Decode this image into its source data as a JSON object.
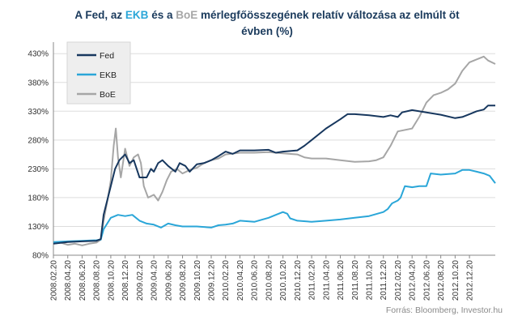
{
  "title": {
    "part1": "A Fed,  az ",
    "ekb": "EKB",
    "part2": " és a ",
    "boe": "BoE",
    "part3": " mérlegfőösszegének  relatív változása az elmúlt öt",
    "line2": "évben (%)"
  },
  "source": "Forrás: Bloomberg, Investor.hu",
  "colors": {
    "fed": "#17375e",
    "ekb": "#2aa6d8",
    "boe": "#a6a6a6",
    "title": "#1a3a5c",
    "grid": "#dddddd"
  },
  "chart_data": {
    "type": "line",
    "title": "A Fed, az EKB és a BoE mérlegfőösszegének relatív változása az elmúlt öt évben (%)",
    "y_ticks": [
      "80%",
      "130%",
      "180%",
      "230%",
      "280%",
      "330%",
      "380%",
      "430%"
    ],
    "ylim": [
      80,
      450
    ],
    "x_ticks": [
      "2008.02.20",
      "2008.04.20",
      "2008.06.20",
      "2008.08.20",
      "2008.10.20",
      "2008.12.20",
      "2009.02.20",
      "2009.04.20",
      "2009.06.20",
      "2009.08.20",
      "2009.10.20",
      "2009.12.20",
      "2010.02.20",
      "2010.04.20",
      "2010.06.20",
      "2010.08.20",
      "2010.10.20",
      "2010.12.20",
      "2011.02.20",
      "2011.04.20",
      "2011.06.20",
      "2011.08.20",
      "2011.10.20",
      "2011.12.20",
      "2012.02.20",
      "2012.04.20",
      "2012.06.20",
      "2012.08.20",
      "2012.10.20",
      "2012.12.20"
    ],
    "xlim": [
      0,
      30.8
    ],
    "grid": "horizontal",
    "legend": "top-left",
    "series": [
      {
        "name": "Fed",
        "color": "#17375e",
        "points": [
          [
            0,
            100
          ],
          [
            1,
            103
          ],
          [
            2,
            104
          ],
          [
            3,
            105
          ],
          [
            3.3,
            108
          ],
          [
            3.5,
            150
          ],
          [
            4,
            200
          ],
          [
            4.3,
            230
          ],
          [
            4.6,
            245
          ],
          [
            5,
            255
          ],
          [
            5.3,
            240
          ],
          [
            5.6,
            245
          ],
          [
            6,
            215
          ],
          [
            6.5,
            215
          ],
          [
            6.8,
            230
          ],
          [
            7,
            225
          ],
          [
            7.3,
            240
          ],
          [
            7.6,
            245
          ],
          [
            8,
            235
          ],
          [
            8.5,
            225
          ],
          [
            8.8,
            240
          ],
          [
            9.2,
            235
          ],
          [
            9.5,
            225
          ],
          [
            10,
            238
          ],
          [
            10.5,
            240
          ],
          [
            11,
            245
          ],
          [
            11.5,
            252
          ],
          [
            12,
            260
          ],
          [
            12.5,
            256
          ],
          [
            13,
            262
          ],
          [
            14,
            262
          ],
          [
            15,
            263
          ],
          [
            15.5,
            258
          ],
          [
            16,
            260
          ],
          [
            17,
            262
          ],
          [
            17.5,
            270
          ],
          [
            18,
            280
          ],
          [
            19,
            300
          ],
          [
            20,
            316
          ],
          [
            20.5,
            325
          ],
          [
            21,
            325
          ],
          [
            22,
            323
          ],
          [
            23,
            320
          ],
          [
            23.5,
            323
          ],
          [
            24,
            320
          ],
          [
            24.3,
            328
          ],
          [
            25,
            332
          ],
          [
            26,
            328
          ],
          [
            27,
            324
          ],
          [
            28,
            318
          ],
          [
            28.5,
            320
          ],
          [
            29,
            325
          ],
          [
            29.5,
            330
          ],
          [
            30,
            333
          ],
          [
            30.3,
            340
          ],
          [
            30.8,
            340
          ]
        ]
      },
      {
        "name": "EKB",
        "color": "#2aa6d8",
        "points": [
          [
            0,
            103
          ],
          [
            1,
            104
          ],
          [
            2,
            105
          ],
          [
            3,
            106
          ],
          [
            3.3,
            107
          ],
          [
            3.5,
            125
          ],
          [
            4,
            145
          ],
          [
            4.5,
            150
          ],
          [
            5,
            148
          ],
          [
            5.5,
            150
          ],
          [
            6,
            140
          ],
          [
            6.5,
            135
          ],
          [
            7,
            133
          ],
          [
            7.5,
            128
          ],
          [
            8,
            135
          ],
          [
            8.5,
            132
          ],
          [
            9,
            130
          ],
          [
            10,
            130
          ],
          [
            11,
            128
          ],
          [
            11.5,
            132
          ],
          [
            12,
            133
          ],
          [
            12.5,
            135
          ],
          [
            13,
            140
          ],
          [
            14,
            138
          ],
          [
            15,
            145
          ],
          [
            15.5,
            150
          ],
          [
            16,
            155
          ],
          [
            16.3,
            152
          ],
          [
            16.5,
            144
          ],
          [
            17,
            140
          ],
          [
            18,
            138
          ],
          [
            19,
            140
          ],
          [
            20,
            142
          ],
          [
            21,
            145
          ],
          [
            22,
            148
          ],
          [
            23,
            155
          ],
          [
            23.3,
            160
          ],
          [
            23.6,
            170
          ],
          [
            24,
            175
          ],
          [
            24.2,
            180
          ],
          [
            24.5,
            200
          ],
          [
            25,
            198
          ],
          [
            25.5,
            200
          ],
          [
            26,
            200
          ],
          [
            26.3,
            222
          ],
          [
            27,
            220
          ],
          [
            28,
            222
          ],
          [
            28.5,
            228
          ],
          [
            29,
            228
          ],
          [
            29.5,
            225
          ],
          [
            30,
            222
          ],
          [
            30.4,
            218
          ],
          [
            30.8,
            205
          ]
        ]
      },
      {
        "name": "BoE",
        "color": "#a6a6a6",
        "points": [
          [
            0,
            100
          ],
          [
            0.5,
            102
          ],
          [
            1,
            98
          ],
          [
            1.5,
            100
          ],
          [
            2,
            97
          ],
          [
            2.5,
            100
          ],
          [
            3,
            102
          ],
          [
            3.3,
            107
          ],
          [
            3.5,
            140
          ],
          [
            3.8,
            180
          ],
          [
            4,
            210
          ],
          [
            4.2,
            270
          ],
          [
            4.35,
            300
          ],
          [
            4.5,
            250
          ],
          [
            4.7,
            215
          ],
          [
            5,
            265
          ],
          [
            5.3,
            235
          ],
          [
            5.6,
            250
          ],
          [
            5.9,
            255
          ],
          [
            6.1,
            240
          ],
          [
            6.3,
            200
          ],
          [
            6.6,
            180
          ],
          [
            7,
            185
          ],
          [
            7.3,
            175
          ],
          [
            7.6,
            190
          ],
          [
            7.9,
            210
          ],
          [
            8.2,
            225
          ],
          [
            8.6,
            230
          ],
          [
            9,
            222
          ],
          [
            9.5,
            228
          ],
          [
            10,
            232
          ],
          [
            10.5,
            240
          ],
          [
            11,
            245
          ],
          [
            11.5,
            248
          ],
          [
            12,
            255
          ],
          [
            13,
            258
          ],
          [
            14,
            258
          ],
          [
            15,
            259
          ],
          [
            16,
            257
          ],
          [
            17,
            255
          ],
          [
            17.5,
            250
          ],
          [
            18,
            248
          ],
          [
            19,
            248
          ],
          [
            20,
            245
          ],
          [
            21,
            242
          ],
          [
            22,
            243
          ],
          [
            22.5,
            245
          ],
          [
            23,
            250
          ],
          [
            23.5,
            270
          ],
          [
            24,
            295
          ],
          [
            25,
            300
          ],
          [
            25.5,
            320
          ],
          [
            26,
            345
          ],
          [
            26.5,
            358
          ],
          [
            27,
            362
          ],
          [
            27.5,
            368
          ],
          [
            28,
            378
          ],
          [
            28.5,
            400
          ],
          [
            29,
            415
          ],
          [
            29.5,
            420
          ],
          [
            30,
            425
          ],
          [
            30.3,
            418
          ],
          [
            30.8,
            412
          ]
        ]
      }
    ]
  }
}
